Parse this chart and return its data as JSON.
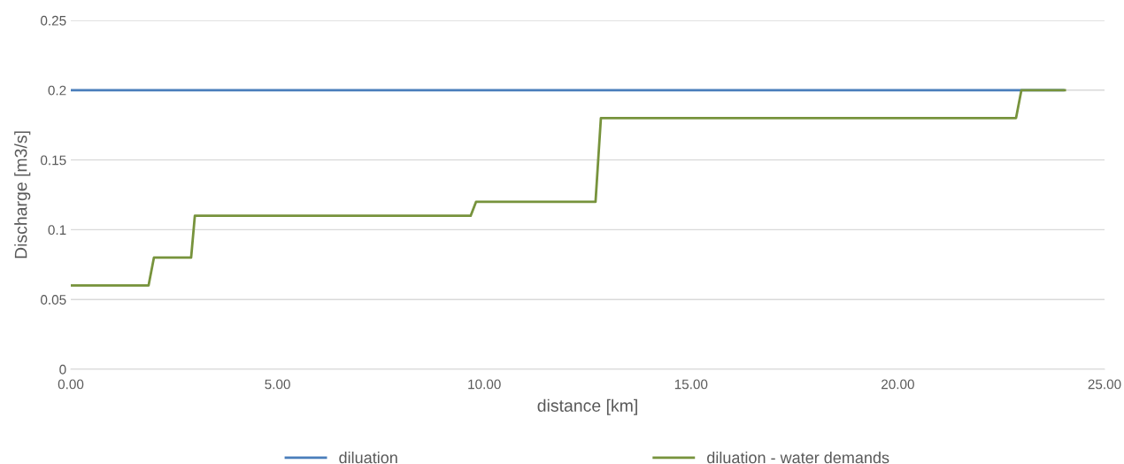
{
  "chart_data": {
    "type": "line",
    "xlabel": "distance [km]",
    "ylabel": "Discharge [m3/s]",
    "series": [
      {
        "name": "diluation",
        "color": "#4a7ebb",
        "x": [
          0,
          24.0
        ],
        "values": [
          0.2,
          0.2
        ]
      },
      {
        "name": "diluation - water demands",
        "color": "#77933c",
        "x": [
          0,
          1.88,
          2.01,
          2.91,
          3.0,
          9.67,
          9.8,
          12.69,
          12.82,
          22.86,
          22.99,
          24.04
        ],
        "values": [
          0.06,
          0.06,
          0.08,
          0.08,
          0.11,
          0.11,
          0.12,
          0.12,
          0.18,
          0.18,
          0.2,
          0.2
        ]
      }
    ],
    "xlim": [
      0,
      25
    ],
    "xticks": [
      {
        "value": 0,
        "label": "0.00"
      },
      {
        "value": 5,
        "label": "5.00"
      },
      {
        "value": 10,
        "label": "10.00"
      },
      {
        "value": 15,
        "label": "15.00"
      },
      {
        "value": 20,
        "label": "20.00"
      },
      {
        "value": 25,
        "label": "25.00"
      }
    ],
    "ylim": [
      0,
      0.25
    ],
    "yticks": [
      0,
      0.05,
      0.1,
      0.15,
      0.2,
      0.25
    ],
    "grid": "y",
    "legend": "bottom",
    "marker": "none",
    "line_style": "solid"
  }
}
